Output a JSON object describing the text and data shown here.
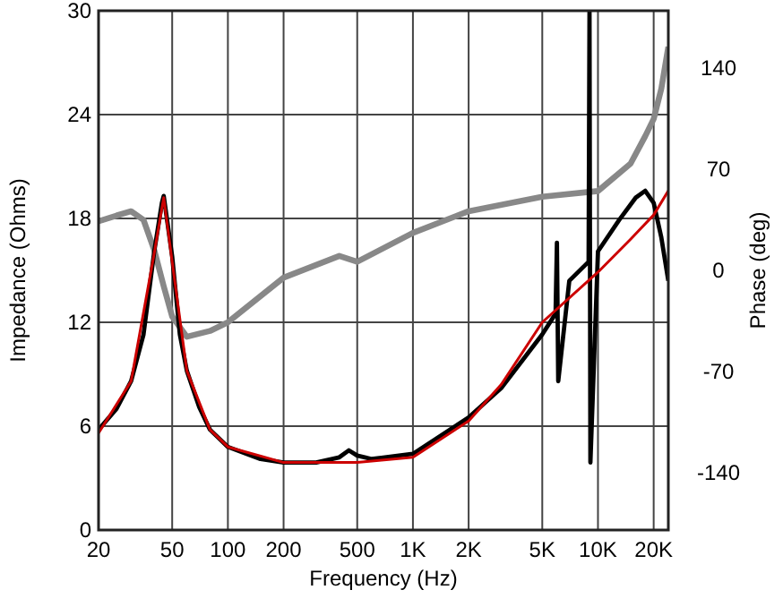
{
  "chart_data": {
    "type": "line",
    "xlabel": "Frequency (Hz)",
    "ylabel": "Impedance (Ohms)",
    "y2label": "Phase (deg)",
    "log": "x",
    "grid": true,
    "xlim": [
      20,
      24000
    ],
    "xticks": [
      20,
      50,
      100,
      200,
      500,
      {
        "value": 1000,
        "label": "1K"
      },
      {
        "value": 2000,
        "label": "2K"
      },
      {
        "value": 5000,
        "label": "5K"
      },
      {
        "value": 10000,
        "label": "10K"
      },
      {
        "value": 20000,
        "label": "20K"
      }
    ],
    "ylim": [
      0,
      30
    ],
    "yticks": [
      0,
      6,
      12,
      18,
      24,
      30
    ],
    "y2lim": [
      -180,
      180
    ],
    "y2ticks": [
      -140,
      -70,
      0,
      70,
      140
    ],
    "series": [
      {
        "color": "#888888",
        "axis": "y2",
        "x": [
          20,
          25,
          30,
          35,
          40,
          45,
          50,
          60,
          80,
          100,
          200,
          400,
          500,
          1000,
          2000,
          5000,
          10000,
          15000,
          18000,
          20000,
          22000,
          24000
        ],
        "values": [
          34,
          38,
          41,
          35,
          14,
          -11,
          -32,
          -46,
          -42,
          -36,
          -5,
          10,
          6,
          26,
          41,
          51,
          55,
          74,
          93,
          105,
          126,
          155
        ]
      },
      {
        "color": "#000000",
        "x": [
          20,
          25,
          30,
          35,
          40,
          44,
          45,
          50,
          55,
          60,
          70,
          80,
          100,
          150,
          200,
          300,
          400,
          450,
          500,
          600,
          1000,
          2000,
          3000,
          5000,
          5900,
          6000,
          6100,
          7000,
          8900,
          9000,
          9100,
          10000,
          13000,
          16000,
          18000,
          20000,
          22000,
          24000
        ],
        "values": [
          5.8,
          7,
          8.6,
          11.3,
          16.1,
          18.9,
          19.3,
          15.8,
          11.3,
          9.2,
          7.1,
          5.8,
          4.8,
          4.1,
          3.9,
          3.9,
          4.2,
          4.6,
          4.3,
          4.1,
          4.4,
          6.5,
          8.2,
          11.3,
          12.5,
          16.6,
          8.6,
          14.4,
          15.5,
          30,
          3.9,
          16.1,
          17.9,
          19.2,
          19.6,
          18.9,
          16.9,
          14.4
        ]
      },
      {
        "color": "#cc0000",
        "x": [
          20,
          30,
          40,
          45,
          50,
          60,
          80,
          100,
          200,
          500,
          1000,
          2000,
          3000,
          5000,
          10000,
          15000,
          20000,
          24000
        ],
        "values": [
          5.6,
          8.6,
          16,
          19.2,
          15.5,
          9.2,
          5.8,
          4.8,
          3.9,
          3.9,
          4.2,
          6.3,
          8.4,
          12,
          14.9,
          16.8,
          18.2,
          19.6
        ]
      }
    ]
  }
}
